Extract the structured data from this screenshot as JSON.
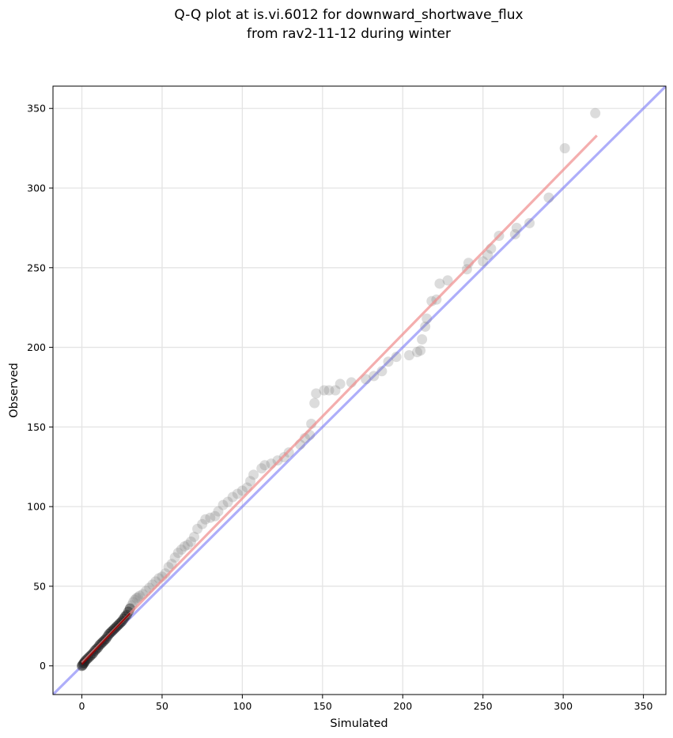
{
  "chart_data": {
    "type": "scatter",
    "title": "Q-Q plot at is.vi.6012 for downward_shortwave_flux",
    "subtitle": "from rav2-11-12 during winter",
    "xlabel": "Simulated",
    "ylabel": "Observed",
    "xlim": [
      -18,
      364
    ],
    "ylim": [
      -18,
      364
    ],
    "xticks": [
      0,
      50,
      100,
      150,
      200,
      250,
      300,
      350
    ],
    "yticks": [
      0,
      50,
      100,
      150,
      200,
      250,
      300,
      350
    ],
    "xtick_labels": [
      "0",
      "50",
      "100",
      "150",
      "200",
      "250",
      "300",
      "350"
    ],
    "ytick_labels": [
      "0",
      "50",
      "100",
      "150",
      "200",
      "250",
      "300",
      "350"
    ],
    "grid": true,
    "legend": "none",
    "identity_line": {
      "from": [
        -18,
        -18
      ],
      "to": [
        364,
        364
      ],
      "color": "#6b6bf5"
    },
    "fit_line": {
      "from": [
        0,
        2
      ],
      "to": [
        321,
        333
      ],
      "color": "#f08c8c"
    },
    "point_color": "#808080",
    "low_end_line_color": "#8b0000",
    "points": [
      [
        0,
        0
      ],
      [
        0.5,
        0.5
      ],
      [
        1,
        1.5
      ],
      [
        1.5,
        2
      ],
      [
        2,
        3
      ],
      [
        3,
        4
      ],
      [
        4,
        5
      ],
      [
        5,
        6
      ],
      [
        6,
        7
      ],
      [
        7,
        8
      ],
      [
        8,
        9.5
      ],
      [
        9,
        10.5
      ],
      [
        10,
        11.5
      ],
      [
        11,
        13
      ],
      [
        12,
        14
      ],
      [
        13,
        15
      ],
      [
        14,
        16
      ],
      [
        15,
        17
      ],
      [
        16,
        18.5
      ],
      [
        17,
        20
      ],
      [
        18,
        21
      ],
      [
        19,
        22
      ],
      [
        20,
        23
      ],
      [
        21,
        24
      ],
      [
        22,
        25
      ],
      [
        23,
        26
      ],
      [
        24,
        27
      ],
      [
        25,
        28
      ],
      [
        26,
        29.5
      ],
      [
        27,
        31
      ],
      [
        28,
        32
      ],
      [
        29,
        34
      ],
      [
        30,
        36
      ],
      [
        31,
        38
      ],
      [
        32,
        40
      ],
      [
        33,
        41.5
      ],
      [
        34,
        42.5
      ],
      [
        35,
        43
      ],
      [
        36,
        44
      ],
      [
        38,
        45
      ],
      [
        40,
        47
      ],
      [
        42,
        49
      ],
      [
        44,
        51
      ],
      [
        46,
        53
      ],
      [
        48,
        55
      ],
      [
        50,
        56
      ],
      [
        52,
        58
      ],
      [
        54,
        62
      ],
      [
        56,
        64
      ],
      [
        58,
        68
      ],
      [
        60,
        71
      ],
      [
        62,
        73
      ],
      [
        64,
        75
      ],
      [
        66,
        76
      ],
      [
        68,
        78
      ],
      [
        70,
        81
      ],
      [
        72,
        86
      ],
      [
        75,
        89
      ],
      [
        77,
        92
      ],
      [
        80,
        93
      ],
      [
        83,
        94
      ],
      [
        85,
        97
      ],
      [
        88,
        101
      ],
      [
        91,
        103
      ],
      [
        94,
        106
      ],
      [
        97,
        108
      ],
      [
        100,
        110
      ],
      [
        103,
        112
      ],
      [
        105,
        116
      ],
      [
        107,
        120
      ],
      [
        112,
        124
      ],
      [
        114,
        126
      ],
      [
        118,
        127
      ],
      [
        122,
        129
      ],
      [
        126,
        131
      ],
      [
        129,
        134
      ],
      [
        136,
        139
      ],
      [
        139,
        143
      ],
      [
        142,
        145
      ],
      [
        143,
        152
      ],
      [
        145,
        165
      ],
      [
        146,
        171
      ],
      [
        151,
        173
      ],
      [
        154,
        173
      ],
      [
        158,
        173
      ],
      [
        161,
        177
      ],
      [
        168,
        178
      ],
      [
        177,
        180
      ],
      [
        182,
        182
      ],
      [
        187,
        185
      ],
      [
        191,
        191
      ],
      [
        196,
        194
      ],
      [
        204,
        195
      ],
      [
        209,
        197
      ],
      [
        211,
        198
      ],
      [
        212,
        205
      ],
      [
        214,
        213
      ],
      [
        215,
        218
      ],
      [
        218,
        229
      ],
      [
        221,
        230
      ],
      [
        223,
        240
      ],
      [
        228,
        242
      ],
      [
        240,
        249
      ],
      [
        241,
        253
      ],
      [
        250,
        254
      ],
      [
        253,
        258
      ],
      [
        255,
        262
      ],
      [
        260,
        270
      ],
      [
        270,
        271
      ],
      [
        271,
        275
      ],
      [
        279,
        278
      ],
      [
        291,
        294
      ],
      [
        301,
        325
      ],
      [
        320,
        347
      ]
    ]
  }
}
